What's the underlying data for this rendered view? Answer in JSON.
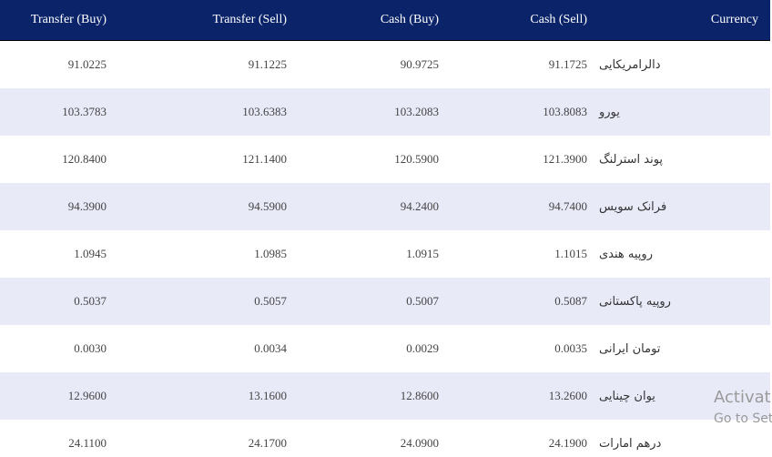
{
  "table": {
    "headers": [
      "Transfer (Buy)",
      "Transfer (Sell)",
      "Cash (Buy)",
      "Cash (Sell)",
      "Currency"
    ],
    "rows": [
      [
        "91.0225",
        "91.1225",
        "90.9725",
        "91.1725",
        "دالرامریکایی"
      ],
      [
        "103.3783",
        "103.6383",
        "103.2083",
        "103.8083",
        "یورو"
      ],
      [
        "120.8400",
        "121.1400",
        "120.5900",
        "121.3900",
        "پوند استرلنگ"
      ],
      [
        "94.3900",
        "94.5900",
        "94.2400",
        "94.7400",
        "فرانک سویس"
      ],
      [
        "1.0945",
        "1.0985",
        "1.0915",
        "1.1015",
        "روپیه هندی"
      ],
      [
        "0.5037",
        "0.5057",
        "0.5007",
        "0.5087",
        "روپیه پاکستانی"
      ],
      [
        "0.0030",
        "0.0034",
        "0.0029",
        "0.0035",
        "تومان ایرانی"
      ],
      [
        "12.9600",
        "13.1600",
        "12.8600",
        "13.2600",
        "یوان چینایی"
      ],
      [
        "24.1100",
        "24.1700",
        "24.0900",
        "24.1900",
        "درهم امارات"
      ]
    ]
  },
  "watermark": {
    "line1": "Activat",
    "line2": "Go to Set"
  }
}
